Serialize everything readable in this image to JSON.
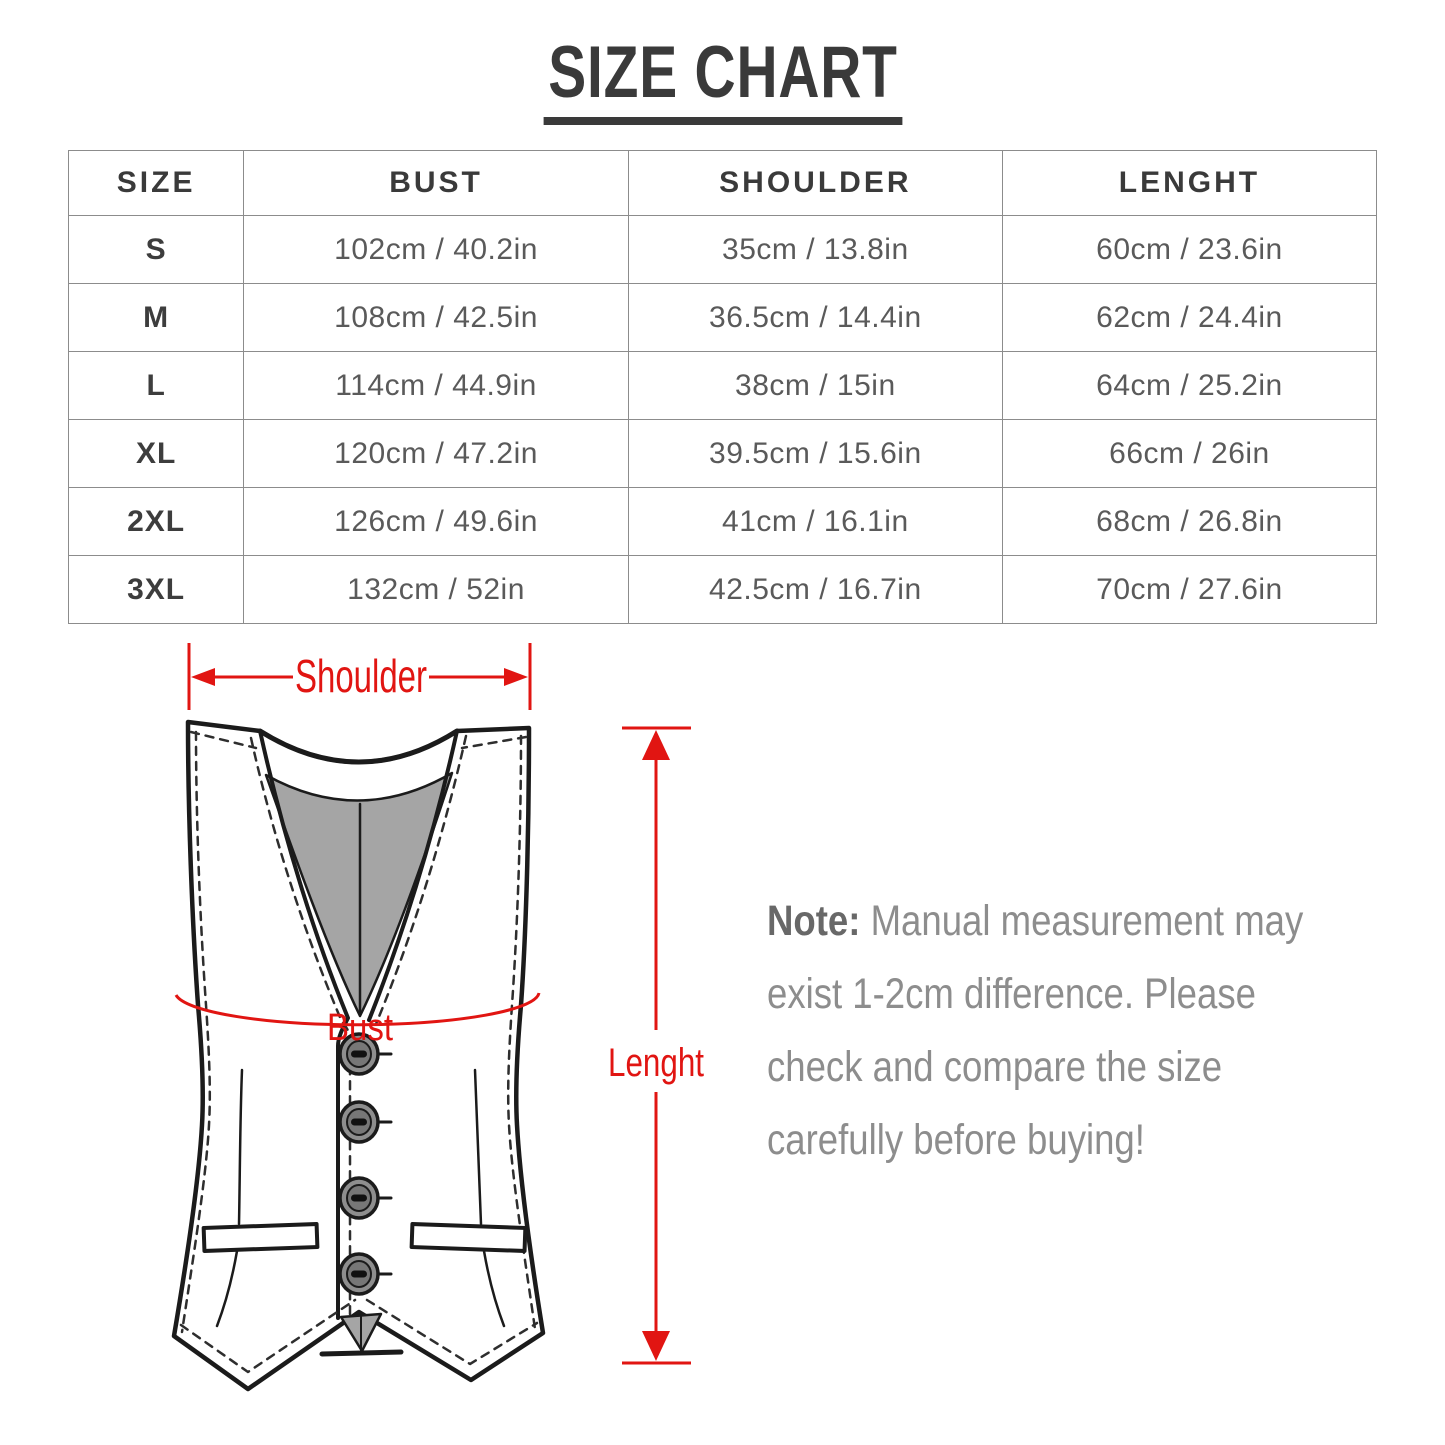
{
  "title": "SIZE CHART",
  "table": {
    "headers": [
      "SIZE",
      "BUST",
      "SHOULDER",
      "LENGHT"
    ],
    "rows": [
      [
        "S",
        "102cm / 40.2in",
        "35cm / 13.8in",
        "60cm / 23.6in"
      ],
      [
        "M",
        "108cm / 42.5in",
        "36.5cm / 14.4in",
        "62cm / 24.4in"
      ],
      [
        "L",
        "114cm / 44.9in",
        "38cm / 15in",
        "64cm / 25.2in"
      ],
      [
        "XL",
        "120cm / 47.2in",
        "39.5cm / 15.6in",
        "66cm / 26in"
      ],
      [
        "2XL",
        "126cm / 49.6in",
        "41cm / 16.1in",
        "68cm / 26.8in"
      ],
      [
        "3XL",
        "132cm / 52in",
        "42.5cm / 16.7in",
        "70cm / 27.6in"
      ]
    ]
  },
  "diagram": {
    "shoulder_label": "Shoulder",
    "bust_label": "Bust",
    "length_label": "Lenght"
  },
  "note": {
    "label": "Note:",
    "lines": [
      "Manual measurement may",
      "exist 1-2cm difference. Please",
      "check and compare the size",
      "carefully before buying!"
    ]
  },
  "colors": {
    "annotation_red": "#e11512",
    "heading_dark": "#3a3a3a",
    "cell_gray": "#5a5a5a",
    "note_gray": "#8d8d8d",
    "table_border": "#8c8c8c",
    "vest_line": "#1b1b1b",
    "lining_gray": "#a5a5a5"
  }
}
